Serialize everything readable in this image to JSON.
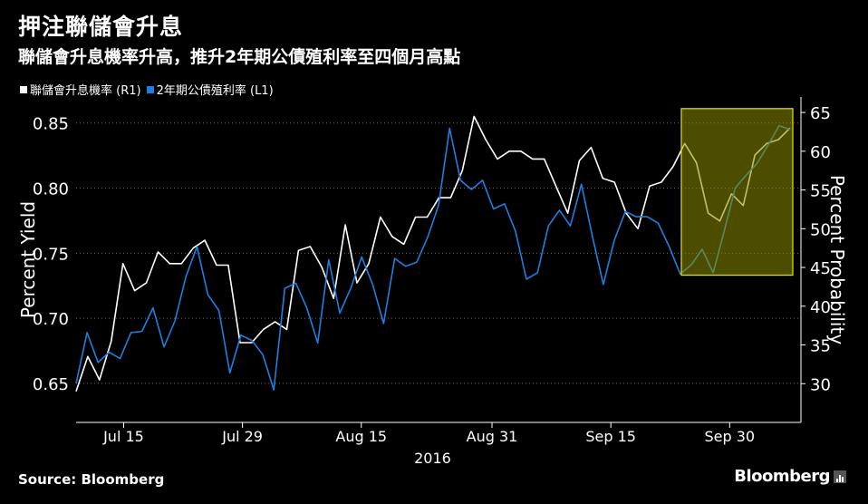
{
  "title": "押注聯儲會升息",
  "subtitle": "聯儲會升息機率升高，推升2年期公債殖利率至四個月高點",
  "source": "Source: Bloomberg",
  "brand": "Bloomberg",
  "colors": {
    "right_series": "#ffffff",
    "left_series": "#1e7fe0",
    "highlight_fill": "#8c8c00",
    "highlight_stroke": "#e6e600"
  },
  "chart_data": {
    "type": "line",
    "x_label": "2016",
    "x_ticks": [
      "Jul 15",
      "Jul 29",
      "Aug 15",
      "Aug 31",
      "Sep 15",
      "Sep 30"
    ],
    "left_axis": {
      "label": "Percent Yield",
      "range": [
        0.62,
        0.87
      ],
      "ticks": [
        "0.65",
        "0.70",
        "0.75",
        "0.80",
        "0.85"
      ]
    },
    "right_axis": {
      "label": "Percent Probability",
      "range": [
        25,
        67
      ],
      "ticks": [
        "30",
        "35",
        "40",
        "45",
        "50",
        "55",
        "60",
        "65"
      ]
    },
    "legend": [
      "聯儲會升息機率 (R1)",
      "2年期公債殖利率 (L1)"
    ],
    "highlight": {
      "x_range": [
        50,
        57
      ],
      "y_range_right": [
        44,
        65.5
      ]
    },
    "series": [
      {
        "name": "聯儲會升息機率 (R1)",
        "axis": "right",
        "values": [
          29,
          33.5,
          30.5,
          35.5,
          45.5,
          42,
          43,
          47,
          45.5,
          45.5,
          47.5,
          48.5,
          45.3,
          45.3,
          35.3,
          35.3,
          37,
          38,
          37,
          47.2,
          47.7,
          45,
          41,
          50.5,
          43,
          45.5,
          51.5,
          49,
          48,
          51.5,
          51.5,
          54,
          54,
          57.5,
          64.5,
          61.5,
          59,
          60,
          60,
          59,
          59,
          55.5,
          52,
          58.8,
          60.5,
          56.5,
          56,
          52,
          50,
          55.5,
          56,
          58,
          61,
          58.5,
          52,
          51,
          54.5,
          53,
          59.5,
          61,
          61.5,
          63
        ]
      },
      {
        "name": "2年期公債殖利率 (L1)",
        "axis": "left",
        "values": [
          0.65,
          0.689,
          0.666,
          0.674,
          0.669,
          0.689,
          0.69,
          0.708,
          0.678,
          0.698,
          0.732,
          0.755,
          0.718,
          0.706,
          0.658,
          0.687,
          0.683,
          0.672,
          0.645,
          0.723,
          0.727,
          0.708,
          0.681,
          0.745,
          0.704,
          0.723,
          0.747,
          0.726,
          0.696,
          0.746,
          0.74,
          0.743,
          0.762,
          0.787,
          0.846,
          0.806,
          0.799,
          0.806,
          0.784,
          0.788,
          0.767,
          0.73,
          0.735,
          0.771,
          0.783,
          0.771,
          0.803,
          0.763,
          0.726,
          0.76,
          0.782,
          0.778,
          0.778,
          0.773,
          0.755,
          0.734,
          0.741,
          0.753,
          0.735,
          0.767,
          0.8,
          0.81,
          0.819,
          0.833,
          0.848,
          0.845
        ]
      }
    ]
  }
}
